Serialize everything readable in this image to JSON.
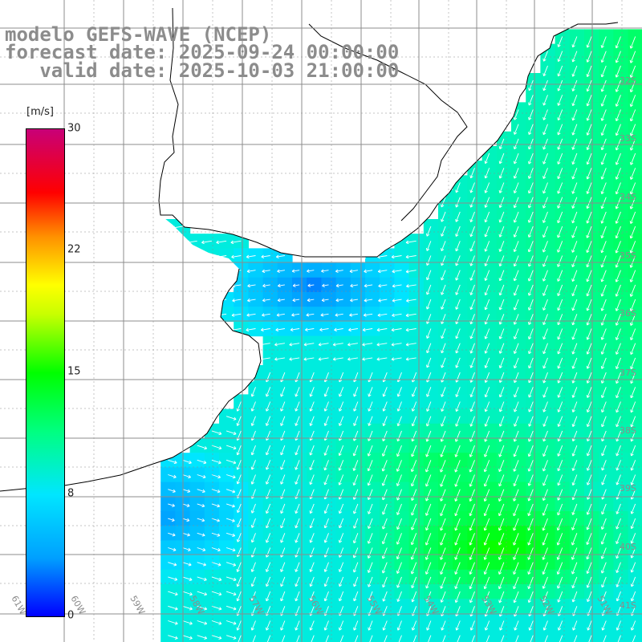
{
  "title": {
    "line1": "modelo GEFS-WAVE (NCEP)",
    "line2": "forecast date: 2025-09-24 00:00:00",
    "line3": "   valid date: 2025-10-03 21:00:00"
  },
  "colorbar": {
    "unit": "[m/s]",
    "min": 0,
    "max": 30,
    "ticks": [
      "30",
      "22",
      "15",
      "8",
      "0"
    ],
    "tick_values": [
      30,
      22,
      15,
      8,
      0
    ],
    "colors": [
      "#0000ff",
      "#00a0ff",
      "#00e6ff",
      "#00ff80",
      "#00ff00",
      "#c8ff00",
      "#ffff00",
      "#ff9000",
      "#ff0000",
      "#c80078"
    ]
  },
  "map": {
    "lon_labels": [
      "61W",
      "60W",
      "59W",
      "58W",
      "57W",
      "56W",
      "55W",
      "54W",
      "53W",
      "52W",
      "51W"
    ],
    "lat_labels": [
      "32S",
      "33S",
      "34S",
      "35S",
      "36S",
      "37S",
      "38S",
      "39S",
      "40S",
      "41S"
    ],
    "grid_color": "#8c8c8c",
    "land_color": "#ffffff",
    "arrow_color": "#ffffff"
  }
}
